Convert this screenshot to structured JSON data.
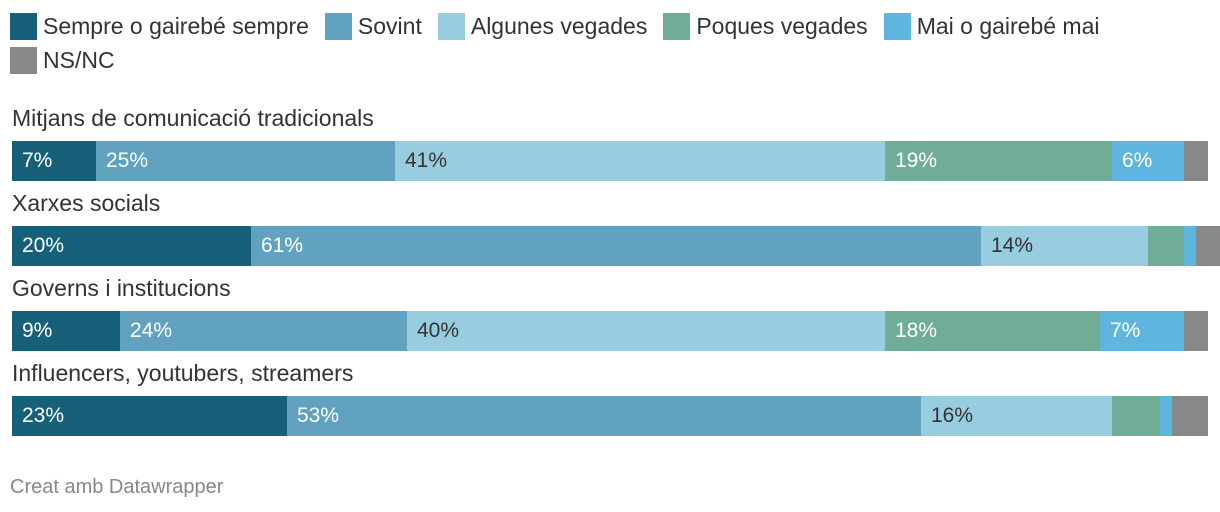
{
  "chart_data": {
    "type": "bar",
    "orientation": "horizontal",
    "stacked": true,
    "percent": true,
    "title": "",
    "categories": [
      "Mitjans de comunicació tradicionals",
      "Xarxes socials",
      "Governs i institucions",
      "Influencers, youtubers, streamers"
    ],
    "series": [
      {
        "name": "Sempre o gairebé sempre",
        "color": "#17607a",
        "label_color": "#ffffff",
        "values": [
          7,
          20,
          9,
          23
        ]
      },
      {
        "name": "Sovint",
        "color": "#62a2c1",
        "label_color": "#ffffff",
        "values": [
          25,
          61,
          24,
          53
        ]
      },
      {
        "name": "Algunes vegades",
        "color": "#98cde0",
        "label_color": "#333333",
        "values": [
          41,
          14,
          40,
          16
        ]
      },
      {
        "name": "Poques vegades",
        "color": "#6fad97",
        "label_color": "#ffffff",
        "values": [
          19,
          3,
          18,
          4
        ]
      },
      {
        "name": "Mai o gairebé mai",
        "color": "#5eb5dd",
        "label_color": "#ffffff",
        "values": [
          6,
          1,
          7,
          1
        ]
      },
      {
        "name": "NS/NC",
        "color": "#888888",
        "label_color": "#ffffff",
        "values": [
          2,
          2,
          2,
          3
        ]
      }
    ],
    "data_labels": [
      [
        "7%",
        "25%",
        "41%",
        "19%",
        "6%",
        ""
      ],
      [
        "20%",
        "61%",
        "14%",
        "",
        "",
        ""
      ],
      [
        "9%",
        "24%",
        "40%",
        "18%",
        "7%",
        ""
      ],
      [
        "23%",
        "53%",
        "16%",
        "",
        "",
        ""
      ]
    ],
    "xlim": [
      0,
      100
    ],
    "legend_position": "top"
  },
  "footer": {
    "credit": "Creat amb Datawrapper"
  }
}
